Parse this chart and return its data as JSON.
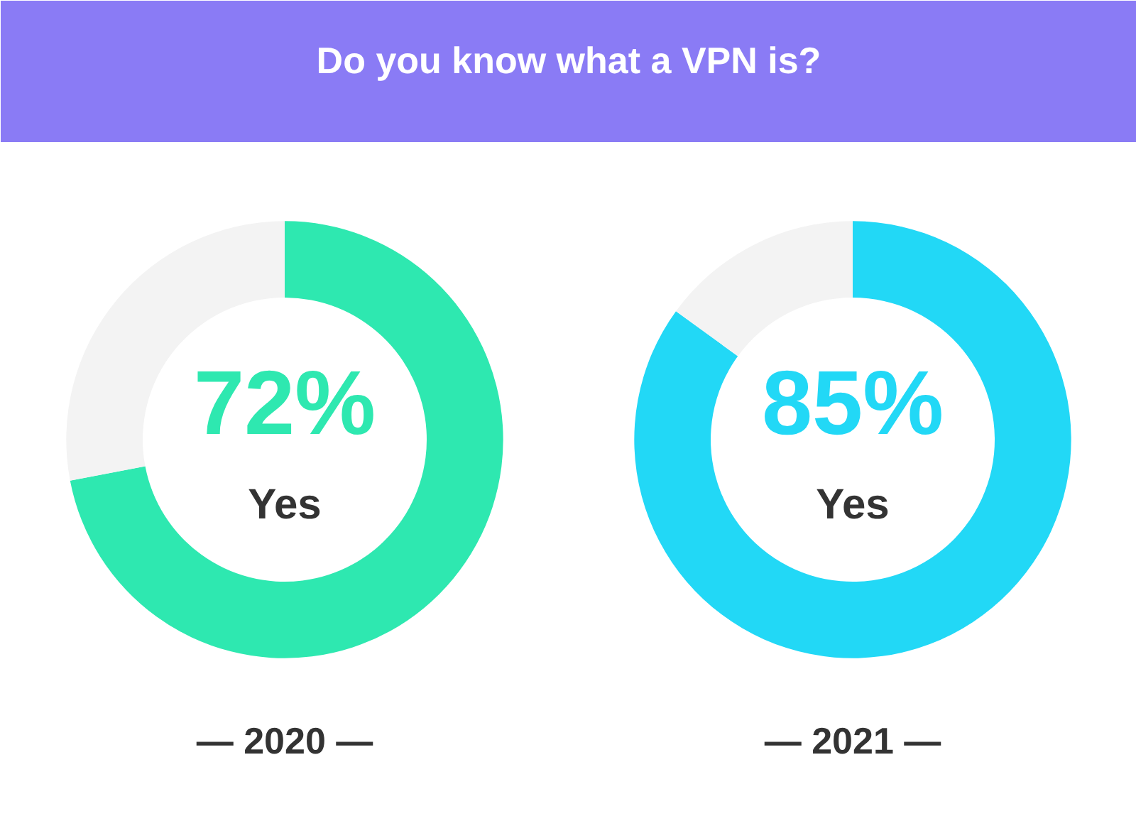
{
  "chart_data": [
    {
      "type": "donut",
      "title": "Do you know what a VPN is?",
      "categories": [
        "Yes",
        null
      ],
      "values": [
        72,
        28
      ],
      "colors": [
        "#2ee8b0",
        "#f3f3f3"
      ],
      "value_labels": [
        "72%",
        null
      ],
      "xlabel": "— 2020 —",
      "legend": false
    },
    {
      "type": "donut",
      "categories": [
        "Yes",
        null
      ],
      "values": [
        85,
        15
      ],
      "colors": [
        "#22d8f6",
        "#f3f3f3"
      ],
      "value_labels": [
        "85%",
        null
      ],
      "xlabel": "— 2021 —",
      "legend": false
    }
  ]
}
